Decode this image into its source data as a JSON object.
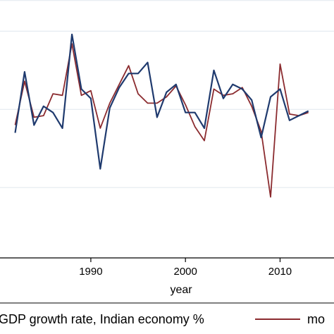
{
  "chart_data": {
    "type": "line",
    "xlabel": "year",
    "x_ticks": [
      1990,
      2000,
      2010
    ],
    "xlim": [
      1982,
      2013
    ],
    "ylim": [
      -0.5,
      11
    ],
    "grid": true,
    "legend_position": "bottom",
    "series": [
      {
        "name": "GDP growth rate, Indian economy %",
        "color": "#1f3a6e",
        "x": [
          1982,
          1983,
          1984,
          1985,
          1986,
          1987,
          1988,
          1989,
          1990,
          1991,
          1992,
          1993,
          1994,
          1995,
          1996,
          1997,
          1998,
          1999,
          2000,
          2001,
          2002,
          2003,
          2004,
          2005,
          2006,
          2007,
          2008,
          2009,
          2010,
          2011,
          2012,
          2013
        ],
        "values": [
          3.5,
          7.4,
          4.0,
          5.2,
          4.8,
          3.8,
          9.8,
          6.3,
          5.7,
          1.2,
          5.1,
          6.4,
          7.3,
          7.3,
          8.0,
          4.5,
          6.1,
          6.6,
          4.8,
          4.8,
          3.8,
          7.5,
          5.7,
          6.6,
          6.3,
          5.6,
          3.2,
          5.8,
          6.3,
          4.3,
          4.6,
          4.9
        ]
      },
      {
        "name": "mo",
        "color": "#8b2b2f",
        "x": [
          1982,
          1983,
          1984,
          1985,
          1986,
          1987,
          1988,
          1989,
          1990,
          1991,
          1992,
          1993,
          1994,
          1995,
          1996,
          1997,
          1998,
          1999,
          2000,
          2001,
          2002,
          2003,
          2004,
          2005,
          2006,
          2007,
          2008,
          2009,
          2010,
          2011,
          2012,
          2013
        ],
        "values": [
          4.0,
          6.8,
          4.5,
          4.6,
          6.0,
          5.9,
          9.2,
          5.9,
          6.2,
          3.8,
          5.4,
          6.6,
          7.8,
          6.0,
          5.4,
          5.4,
          5.8,
          6.5,
          5.3,
          3.9,
          3.0,
          6.3,
          5.9,
          6.0,
          6.4,
          5.2,
          3.6,
          -0.6,
          7.9,
          4.7,
          4.6,
          4.8
        ]
      }
    ]
  }
}
